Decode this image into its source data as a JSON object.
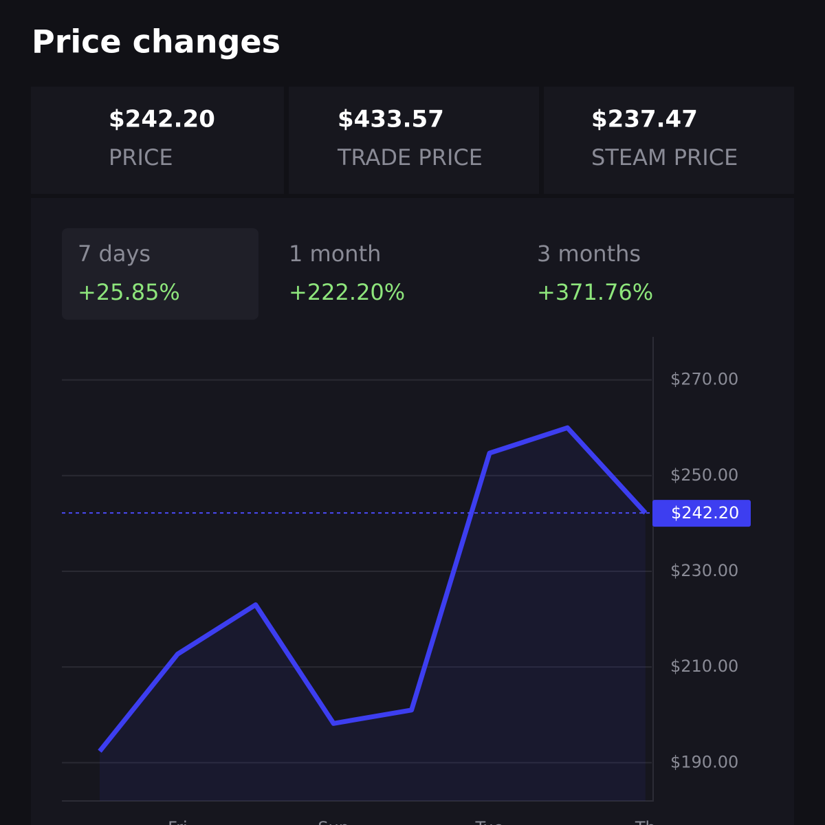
{
  "header": {
    "title": "Price changes"
  },
  "stats": [
    {
      "value": "$242.20",
      "label": "PRICE"
    },
    {
      "value": "$433.57",
      "label": "TRADE PRICE"
    },
    {
      "value": "$237.47",
      "label": "STEAM PRICE"
    }
  ],
  "tabs": [
    {
      "label": "7 days",
      "change": "+25.85%"
    },
    {
      "label": "1 month",
      "change": "+222.20%"
    },
    {
      "label": "3 months",
      "change": "+371.76%"
    }
  ],
  "chart_data": {
    "type": "line",
    "categories": [
      null,
      "Fri",
      null,
      "Sun",
      null,
      "Tue",
      null,
      "Th"
    ],
    "series": [
      {
        "name": "Price",
        "color": "#3d3ef0",
        "values": [
          192.4,
          212.7,
          223.0,
          198.2,
          201.0,
          254.7,
          260.0,
          242.2
        ]
      }
    ],
    "current": {
      "value": 242.2,
      "label": "$242.20"
    },
    "ylim": [
      182,
      279
    ],
    "yticks": [
      {
        "value": 190,
        "label": "$190.00"
      },
      {
        "value": 210,
        "label": "$210.00"
      },
      {
        "value": 230,
        "label": "$230.00"
      },
      {
        "value": 250,
        "label": "$250.00"
      },
      {
        "value": 270,
        "label": "$270.00"
      }
    ],
    "grid": true
  }
}
